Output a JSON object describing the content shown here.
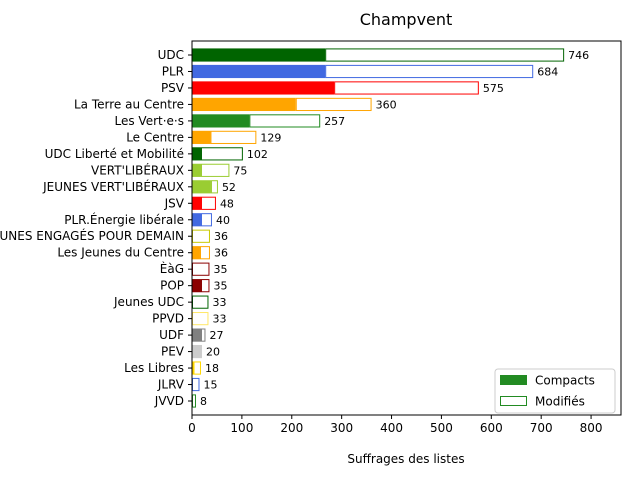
{
  "chart_data": {
    "type": "bar",
    "orientation": "horizontal",
    "title": "Champvent",
    "xlabel": "Suffrages des listes",
    "ylabel": "",
    "xlim": [
      0,
      860
    ],
    "xticks": [
      0,
      100,
      200,
      300,
      400,
      500,
      600,
      700,
      800
    ],
    "grid": false,
    "legend": {
      "placement": "lower-right",
      "entries": [
        {
          "label": "Compacts",
          "style": "filled",
          "color": "#228b22"
        },
        {
          "label": "Modifiés",
          "style": "outline",
          "color": "#228b22"
        }
      ]
    },
    "categories": [
      "UDC",
      "PLR",
      "PSV",
      "La Terre au Centre",
      "Les Vert·e·s",
      "Le Centre",
      "UDC Liberté et Mobilité",
      "VERT'LIBÉRAUX",
      "JEUNES VERT'LIBÉRAUX",
      "JSV",
      "PLR.Énergie libérale",
      "JEUNES ENGAGÉS POUR DEMAIN",
      "Les Jeunes du Centre",
      "ÈàG",
      "POP",
      "Jeunes UDC",
      "PPVD",
      "UDF",
      "PEV",
      "Les Libres",
      "JLRV",
      "JVVD"
    ],
    "series": [
      {
        "name": "Compacts",
        "values": [
          267,
          267,
          285,
          208,
          115,
          37,
          18,
          18,
          38,
          18,
          18,
          0,
          16,
          0,
          18,
          0,
          0,
          18,
          20,
          3,
          0,
          0
        ]
      },
      {
        "name": "Modifiés",
        "values": [
          479,
          417,
          290,
          152,
          142,
          92,
          84,
          57,
          14,
          30,
          22,
          36,
          20,
          35,
          17,
          33,
          33,
          9,
          0,
          15,
          15,
          8
        ]
      }
    ],
    "totals": [
      746,
      684,
      575,
      360,
      257,
      129,
      102,
      75,
      52,
      48,
      40,
      36,
      36,
      35,
      35,
      33,
      33,
      27,
      20,
      18,
      15,
      8
    ],
    "colors": [
      "#006400",
      "#4169e1",
      "#ff0000",
      "#ffa500",
      "#228b22",
      "#ffa500",
      "#006400",
      "#9acd32",
      "#9acd32",
      "#ff0000",
      "#4169e1",
      "#c9c900",
      "#ffa500",
      "#8b0000",
      "#8b0000",
      "#006400",
      "#ffe766",
      "#808080",
      "#cccccc",
      "#ffd700",
      "#4169e1",
      "#228b22"
    ]
  }
}
